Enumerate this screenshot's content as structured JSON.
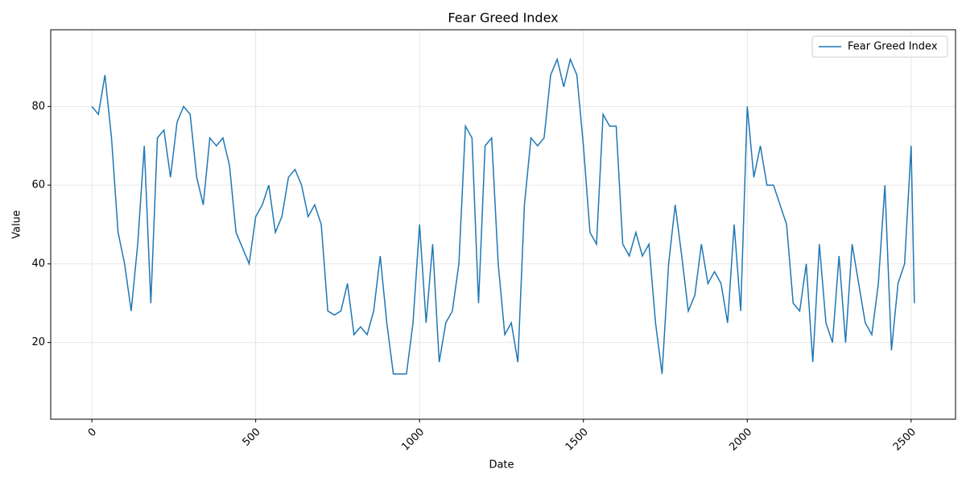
{
  "chart_data": {
    "type": "line",
    "title": "Fear Greed Index",
    "xlabel": "Date",
    "ylabel": "Value",
    "x": [
      0,
      20,
      40,
      60,
      80,
      100,
      120,
      140,
      160,
      180,
      200,
      220,
      240,
      260,
      280,
      300,
      320,
      340,
      360,
      380,
      400,
      420,
      440,
      460,
      480,
      500,
      520,
      540,
      560,
      580,
      600,
      620,
      640,
      660,
      680,
      700,
      720,
      740,
      760,
      780,
      800,
      820,
      840,
      860,
      880,
      900,
      920,
      940,
      960,
      980,
      1000,
      1020,
      1040,
      1060,
      1080,
      1100,
      1120,
      1140,
      1160,
      1180,
      1200,
      1220,
      1240,
      1260,
      1280,
      1300,
      1320,
      1340,
      1360,
      1380,
      1400,
      1420,
      1440,
      1460,
      1480,
      1500,
      1520,
      1540,
      1560,
      1580,
      1600,
      1620,
      1640,
      1660,
      1680,
      1700,
      1720,
      1740,
      1760,
      1780,
      1800,
      1820,
      1840,
      1860,
      1880,
      1900,
      1920,
      1940,
      1960,
      1980,
      2000,
      2020,
      2040,
      2060,
      2080,
      2100,
      2120,
      2140,
      2160,
      2180,
      2200,
      2220,
      2240,
      2260,
      2280,
      2300,
      2320,
      2340,
      2360,
      2380,
      2400,
      2420,
      2440,
      2460,
      2480,
      2500,
      2510
    ],
    "series": [
      {
        "name": "Fear Greed Index",
        "color": "#1f77b4",
        "values": [
          80,
          78,
          88,
          72,
          48,
          40,
          28,
          45,
          70,
          30,
          72,
          74,
          62,
          76,
          80,
          78,
          62,
          55,
          72,
          70,
          72,
          65,
          48,
          44,
          40,
          52,
          55,
          60,
          48,
          52,
          62,
          64,
          60,
          52,
          55,
          50,
          28,
          27,
          28,
          35,
          22,
          24,
          22,
          28,
          42,
          25,
          12,
          12,
          12,
          25,
          50,
          25,
          45,
          15,
          25,
          28,
          40,
          75,
          72,
          30,
          70,
          72,
          40,
          22,
          25,
          15,
          55,
          72,
          70,
          72,
          88,
          92,
          85,
          92,
          88,
          70,
          48,
          45,
          78,
          75,
          75,
          45,
          42,
          48,
          42,
          45,
          25,
          12,
          40,
          55,
          42,
          28,
          32,
          45,
          35,
          38,
          35,
          25,
          50,
          28,
          80,
          62,
          70,
          60,
          60,
          55,
          50,
          30,
          28,
          40,
          15,
          45,
          25,
          20,
          42,
          20,
          45,
          35,
          25,
          22,
          35,
          60,
          18,
          35,
          40,
          70,
          30
        ]
      }
    ],
    "xlim": [
      -125.5,
      2635.5
    ],
    "ylim": [
      0.5,
      99.5
    ],
    "xticks": [
      0,
      500,
      1000,
      1500,
      2000,
      2500
    ],
    "yticks": [
      20,
      40,
      60,
      80
    ],
    "grid": true,
    "legend": "upper right"
  }
}
